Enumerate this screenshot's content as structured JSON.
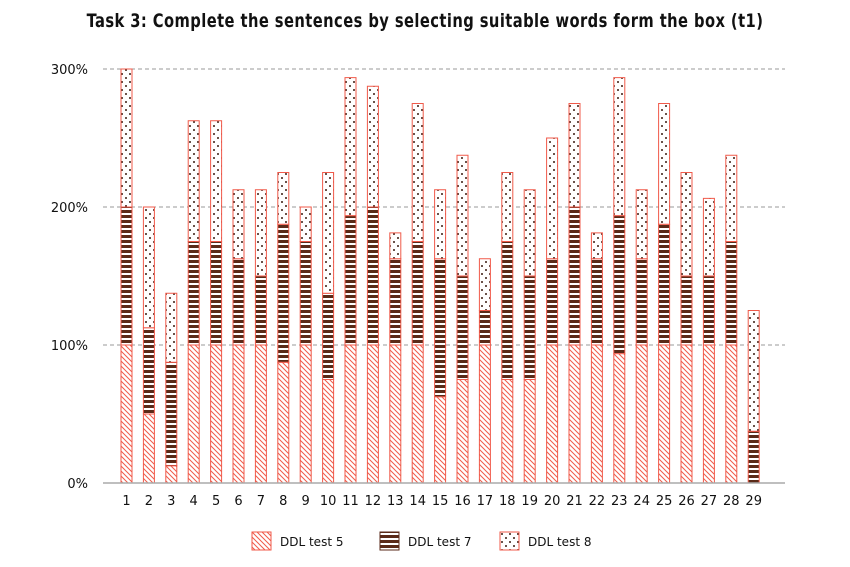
{
  "title": "Task 3: Complete the sentences by selecting suitable words form the box (t1)",
  "colors": {
    "outline": "#f05a4a",
    "test5": "#f05a4a",
    "test7": "#5a2a18",
    "test8": "#3a1a10",
    "grid": "#999999",
    "axis": "#aaaaaa"
  },
  "chart_data": {
    "type": "bar",
    "stacked": true,
    "title": "Task 3: Complete the sentences by selecting suitable words form the box (t1)",
    "xlabel": "",
    "ylabel": "",
    "ylim": [
      0,
      300
    ],
    "yticks": [
      "0%",
      "100%",
      "200%",
      "300%"
    ],
    "grid": "horizontal dashed",
    "legend_position": "bottom",
    "categories": [
      "1",
      "2",
      "3",
      "4",
      "5",
      "6",
      "7",
      "8",
      "9",
      "10",
      "11",
      "12",
      "13",
      "14",
      "15",
      "16",
      "17",
      "18",
      "19",
      "20",
      "21",
      "22",
      "23",
      "24",
      "25",
      "26",
      "27",
      "28",
      "29"
    ],
    "series": [
      {
        "name": "DDL test 5",
        "pattern": "diagonal-hatch",
        "values": [
          100,
          50,
          12.5,
          100,
          100,
          100,
          100,
          87.5,
          100,
          75,
          100,
          100,
          100,
          100,
          62.5,
          75,
          100,
          75,
          75,
          100,
          100,
          100,
          93.75,
          100,
          100,
          100,
          100,
          100,
          0
        ]
      },
      {
        "name": "DDL test 7",
        "pattern": "horizontal-stripes",
        "values": [
          100,
          62.5,
          75,
          75,
          75,
          62.5,
          50,
          100,
          75,
          62.5,
          93.75,
          100,
          62.5,
          75,
          100,
          75,
          25,
          100,
          75,
          62.5,
          100,
          62.5,
          100,
          62.5,
          87.5,
          50,
          50,
          75,
          37.5
        ]
      },
      {
        "name": "DDL test 8",
        "pattern": "dots",
        "values": [
          100,
          87.5,
          50,
          87.5,
          87.5,
          50,
          62.5,
          37.5,
          25,
          87.5,
          100,
          87.5,
          18.75,
          100,
          50,
          87.5,
          37.5,
          50,
          62.5,
          87.5,
          75,
          18.75,
          100,
          50,
          87.5,
          75,
          56.25,
          62.5,
          87.5
        ]
      }
    ]
  },
  "legend": [
    {
      "label": "DDL test 5"
    },
    {
      "label": "DDL test 7"
    },
    {
      "label": "DDL test 8"
    }
  ]
}
